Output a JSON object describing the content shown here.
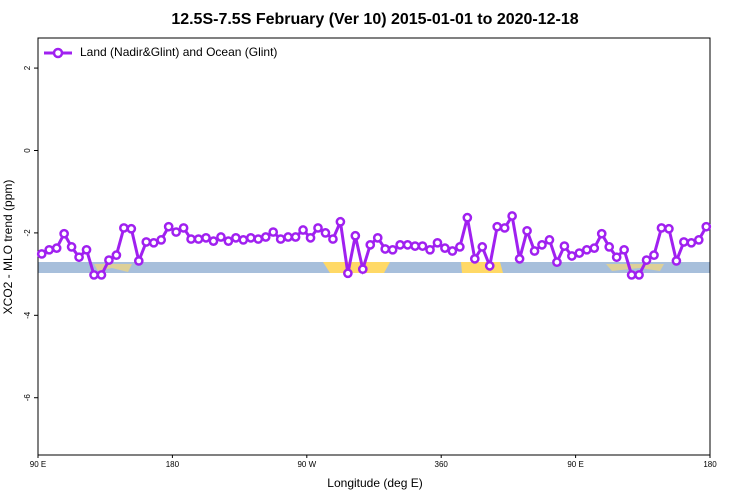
{
  "chart_data": {
    "type": "line",
    "title": "12.5S-7.5S February (Ver 10)   2015-01-01 to 2020-12-18",
    "x_label": "Longitude (deg E)",
    "y_label": "XCO2 - MLO trend (ppm)",
    "legend": "top-left",
    "x": [
      92.5,
      97.5,
      102.5,
      107.5,
      112.5,
      117.5,
      122.5,
      127.5,
      132.5,
      137.5,
      142.5,
      147.5,
      152.5,
      157.5,
      162.5,
      167.5,
      172.5,
      177.5,
      182.5,
      187.5,
      192.5,
      197.5,
      202.5,
      207.5,
      212.5,
      217.5,
      222.5,
      227.5,
      232.5,
      237.5,
      242.5,
      247.5,
      252.5,
      257.5,
      262.5,
      267.5,
      272.5,
      277.5,
      282.5,
      287.5,
      292.5,
      297.5,
      302.5,
      307.5,
      312.5,
      317.5,
      322.5,
      327.5,
      332.5,
      337.5,
      342.5,
      347.5,
      352.5,
      357.5,
      362.5,
      367.5,
      372.5,
      377.5,
      382.5,
      387.5,
      392.5,
      397.5,
      402.5,
      407.5,
      412.5,
      417.5,
      422.5,
      427.5,
      432.5,
      437.5,
      442.5,
      447.5,
      452.5,
      457.5,
      462.5,
      467.5,
      472.5,
      477.5,
      482.5,
      487.5,
      492.5,
      497.5,
      502.5,
      507.5,
      512.5,
      517.5,
      522.5,
      527.5,
      532.5,
      537.5
    ],
    "series": [
      {
        "name": "Land (Nadir&Glint) and Ocean (Glint)",
        "color": "#a020f0",
        "values": [
          -2.51,
          -2.41,
          -2.37,
          -2.02,
          -2.34,
          -2.59,
          -2.41,
          -3.02,
          -3.02,
          -2.66,
          -2.54,
          -1.88,
          -1.9,
          -2.68,
          -2.22,
          -2.24,
          -2.17,
          -1.85,
          -1.98,
          -1.88,
          -2.15,
          -2.15,
          -2.12,
          -2.2,
          -2.1,
          -2.2,
          -2.12,
          -2.17,
          -2.12,
          -2.15,
          -2.1,
          -1.98,
          -2.15,
          -2.1,
          -2.1,
          -1.93,
          -2.12,
          -1.88,
          -2.0,
          -2.15,
          -1.73,
          -2.98,
          -2.07,
          -2.88,
          -2.29,
          -2.12,
          -2.39,
          -2.41,
          -2.29,
          -2.29,
          -2.32,
          -2.32,
          -2.41,
          -2.24,
          -2.37,
          -2.44,
          -2.34,
          -1.63,
          -2.63,
          -2.34,
          -2.8,
          -1.85,
          -1.88,
          -1.59,
          -2.63,
          -1.95,
          -2.44,
          -2.29,
          -2.17,
          -2.71,
          -2.32,
          -2.56,
          -2.49,
          -2.41,
          -2.37,
          -2.02,
          -2.34,
          -2.59,
          -2.41,
          -3.02,
          -3.02,
          -2.66,
          -2.54,
          -1.88,
          -1.9,
          -2.68,
          -2.22,
          -2.24,
          -2.17,
          -1.85
        ]
      }
    ],
    "xlim": [
      90,
      540
    ],
    "xticks": [
      {
        "value": 90,
        "label": "90 E"
      },
      180,
      {
        "value": 270,
        "label": "90 W"
      },
      360,
      {
        "value": 450,
        "label": "90 E"
      },
      {
        "value": 540,
        "label": "180"
      }
    ],
    "ylim": [
      -7.39,
      2.73
    ],
    "yticks": [
      -6,
      -4,
      -2,
      0,
      2
    ]
  }
}
